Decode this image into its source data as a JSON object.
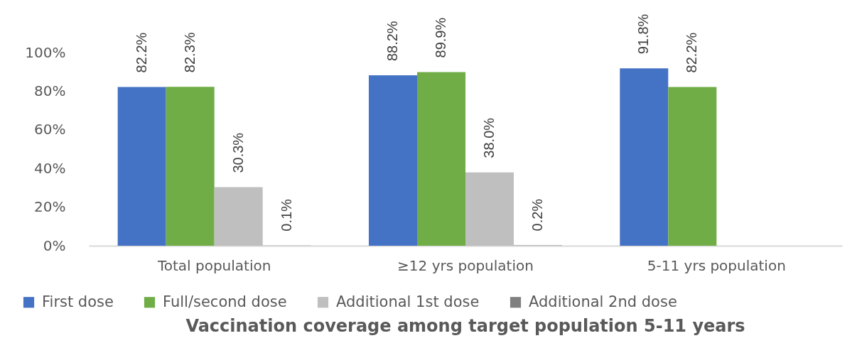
{
  "chart_data": {
    "type": "bar",
    "title": "Vaccination coverage among target population 5-11 years",
    "categories": [
      "Total population",
      "≥12 yrs population",
      "5-11 yrs population"
    ],
    "series": [
      {
        "name": "First dose",
        "color": "#4472c4",
        "values": [
          82.2,
          88.2,
          91.8
        ],
        "value_labels": [
          "82.2%",
          "88.2%",
          "91.8%"
        ]
      },
      {
        "name": "Full/second dose",
        "color": "#70ad47",
        "values": [
          82.3,
          89.9,
          82.2
        ],
        "value_labels": [
          "82.3%",
          "89.9%",
          "82.2%"
        ]
      },
      {
        "name": "Additional 1st dose",
        "color": "#bfbfbf",
        "values": [
          30.3,
          38.0,
          null
        ],
        "value_labels": [
          "30.3%",
          "38.0%",
          null
        ]
      },
      {
        "name": "Additional 2nd dose",
        "color": "#7f7f7f",
        "values": [
          0.1,
          0.2,
          null
        ],
        "value_labels": [
          "0.1%",
          "0.2%",
          null
        ]
      }
    ],
    "ylim": [
      0,
      100
    ],
    "yticks": [
      {
        "value": 0,
        "label": "0%"
      },
      {
        "value": 20,
        "label": "20%"
      },
      {
        "value": 40,
        "label": "40%"
      },
      {
        "value": 60,
        "label": "60%"
      },
      {
        "value": 80,
        "label": "80%"
      },
      {
        "value": 100,
        "label": "100%"
      }
    ],
    "grid": false,
    "legend": "bottom"
  }
}
